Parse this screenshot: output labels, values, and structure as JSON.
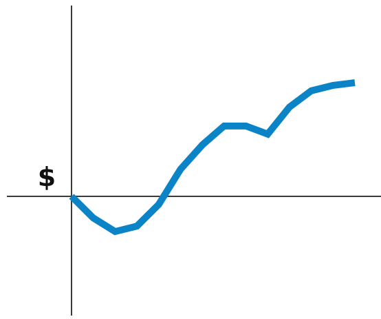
{
  "chart_data": {
    "type": "line",
    "title": "",
    "xlabel": "",
    "ylabel": "$",
    "x": [
      0,
      1,
      2,
      3,
      4,
      5,
      6,
      7,
      8,
      9,
      10,
      11,
      12,
      13
    ],
    "series": [
      {
        "values": [
          0,
          -0.8,
          -1.3,
          -1.1,
          -0.3,
          1.0,
          1.9,
          2.6,
          2.6,
          2.3,
          3.3,
          3.9,
          4.1,
          4.2
        ],
        "color": "#0a84c6"
      }
    ],
    "xlim": [
      0,
      14.2
    ],
    "ylim": [
      -4.1,
      7.0
    ],
    "grid": false,
    "legend": "none"
  }
}
